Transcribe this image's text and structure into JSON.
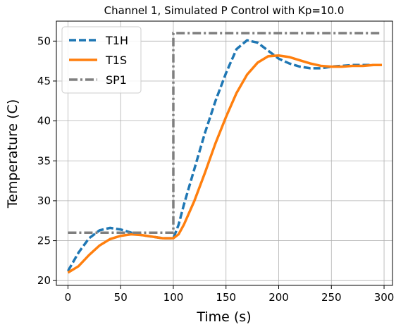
{
  "chart_data": {
    "type": "line",
    "title": "Channel 1, Simulated P Control with Kp=10.0",
    "xlabel": "Time (s)",
    "ylabel": "Temperature (C)",
    "xlim": [
      -11,
      308
    ],
    "ylim": [
      19.4,
      52.5
    ],
    "xticks": [
      0,
      50,
      100,
      150,
      200,
      250,
      300
    ],
    "yticks": [
      20,
      25,
      30,
      35,
      40,
      45,
      50
    ],
    "grid": true,
    "legend": "upper left",
    "series": [
      {
        "name": "T1H",
        "color": "#1f77b4",
        "style": "dashed",
        "x": [
          0,
          10,
          20,
          30,
          40,
          50,
          60,
          70,
          80,
          90,
          100,
          105,
          110,
          120,
          130,
          140,
          150,
          160,
          170,
          180,
          190,
          200,
          210,
          220,
          230,
          240,
          250,
          260,
          270,
          280,
          290,
          298
        ],
        "values": [
          21.2,
          23.5,
          25.3,
          26.3,
          26.6,
          26.4,
          26.0,
          25.7,
          25.5,
          25.3,
          25.3,
          27.0,
          29.5,
          34.0,
          38.5,
          42.5,
          46.0,
          49.0,
          50.1,
          49.8,
          48.8,
          47.8,
          47.2,
          46.8,
          46.6,
          46.6,
          46.8,
          46.9,
          47.0,
          47.0,
          47.0,
          47.0
        ]
      },
      {
        "name": "T1S",
        "color": "#ff7f0e",
        "style": "solid",
        "x": [
          0,
          10,
          20,
          30,
          40,
          50,
          60,
          70,
          80,
          90,
          100,
          105,
          110,
          120,
          130,
          140,
          150,
          160,
          170,
          180,
          190,
          200,
          210,
          220,
          230,
          240,
          250,
          260,
          270,
          280,
          290,
          298
        ],
        "values": [
          21.0,
          21.8,
          23.2,
          24.4,
          25.2,
          25.6,
          25.8,
          25.7,
          25.5,
          25.3,
          25.3,
          25.8,
          27.0,
          30.0,
          33.5,
          37.2,
          40.5,
          43.5,
          45.8,
          47.3,
          48.1,
          48.2,
          48.0,
          47.6,
          47.2,
          46.9,
          46.8,
          46.8,
          46.9,
          46.9,
          47.0,
          47.0
        ]
      },
      {
        "name": "SP1",
        "color": "#7f7f7f",
        "style": "dashdot",
        "x": [
          0,
          100,
          100,
          298
        ],
        "values": [
          26,
          26,
          51,
          51
        ]
      }
    ]
  }
}
